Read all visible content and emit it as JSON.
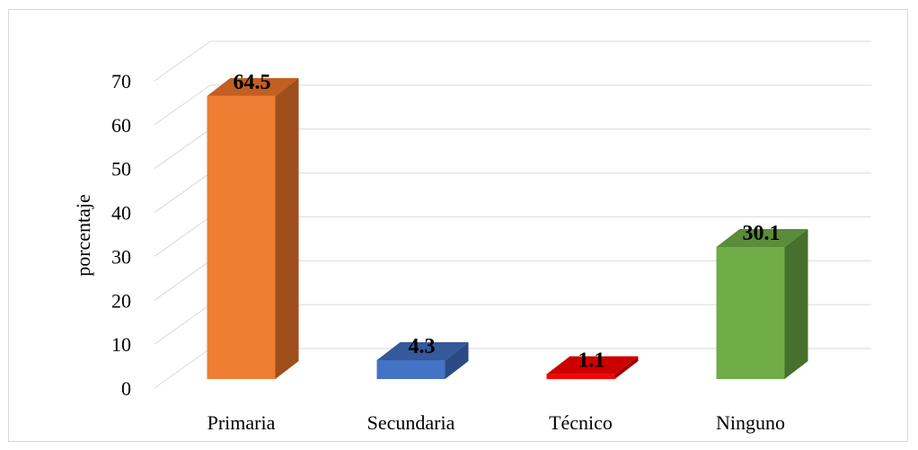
{
  "chart_data": {
    "type": "bar",
    "style": "3d-column",
    "categories": [
      "Primaria",
      "Secundaria",
      "Técnico",
      "Ninguno"
    ],
    "values": [
      64.5,
      4.3,
      1.1,
      30.1
    ],
    "data_labels": [
      "64.5",
      "4.3",
      "1.1",
      "30.1"
    ],
    "colors": [
      {
        "front": "#ed7d31",
        "side": "#9e4e1b",
        "top": "#c25f22"
      },
      {
        "front": "#4472c4",
        "side": "#2b4a84",
        "top": "#36599c"
      },
      {
        "front": "#ff0000",
        "side": "#a30000",
        "top": "#cc0000"
      },
      {
        "front": "#70ad47",
        "side": "#46702b",
        "top": "#5a8c39"
      }
    ],
    "title": "",
    "xlabel": "",
    "ylabel": "porcentaje",
    "ylim": [
      0,
      70
    ],
    "yticks": [
      "0",
      "10",
      "20",
      "30",
      "40",
      "50",
      "60",
      "70"
    ],
    "grid": true,
    "legend": "none"
  }
}
